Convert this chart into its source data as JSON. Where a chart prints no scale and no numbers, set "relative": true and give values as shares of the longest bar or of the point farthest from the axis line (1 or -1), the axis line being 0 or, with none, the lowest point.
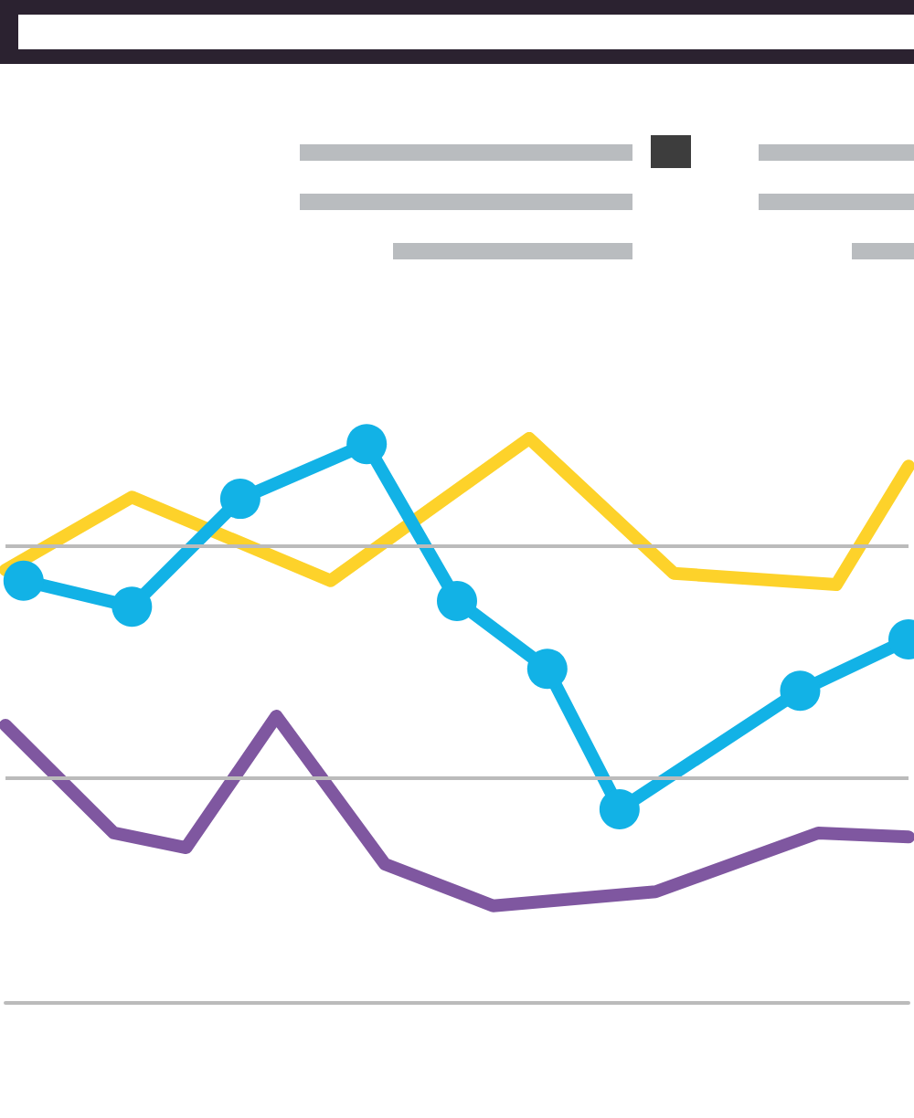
{
  "chart_data": {
    "type": "line",
    "relative": true,
    "ref_lines": [
      {
        "axis": "y",
        "value": 0.806,
        "color": "#bbbbbb"
      },
      {
        "axis": "y",
        "value": 0.401,
        "color": "#bbbbbb"
      }
    ],
    "marker": "none",
    "line_style": "solid",
    "categories": [
      null,
      null,
      null,
      null,
      null,
      null,
      null,
      null,
      null,
      null,
      null,
      null,
      null,
      null,
      null,
      null,
      null,
      null,
      null,
      null,
      null,
      null,
      null,
      null,
      null,
      null,
      null,
      null,
      null,
      null,
      null,
      null,
      null,
      null,
      null,
      null,
      null,
      null,
      null,
      null,
      null,
      null,
      null,
      null,
      null,
      null,
      null,
      null,
      null,
      null,
      null
    ],
    "series": [
      {
        "color": "#fdd22a",
        "values": [
          0.767,
          null,
          null,
          null,
          null,
          null,
          null,
          0.896,
          null,
          null,
          null,
          null,
          null,
          null,
          null,
          null,
          null,
          null,
          0.748,
          null,
          null,
          null,
          null,
          null,
          null,
          null,
          null,
          null,
          null,
          1.0,
          null,
          null,
          null,
          null,
          null,
          null,
          null,
          0.761,
          null,
          null,
          null,
          null,
          null,
          null,
          null,
          null,
          0.741,
          null,
          null,
          null,
          0.951
        ]
      },
      {
        "color": "#7f57a0",
        "values": [
          0.492,
          null,
          null,
          null,
          null,
          null,
          0.301,
          null,
          null,
          null,
          0.275,
          null,
          null,
          null,
          null,
          0.508,
          null,
          null,
          null,
          null,
          null,
          0.246,
          null,
          null,
          null,
          null,
          null,
          0.172,
          null,
          null,
          null,
          null,
          null,
          null,
          null,
          null,
          0.197,
          null,
          null,
          null,
          null,
          null,
          null,
          null,
          null,
          0.301,
          null,
          null,
          null,
          null,
          0.294
        ]
      },
      {
        "color": "#12b2e6",
        "marker": "circle",
        "values": [
          null,
          0.748,
          null,
          null,
          null,
          null,
          null,
          0.702,
          null,
          null,
          null,
          null,
          null,
          0.893,
          null,
          null,
          null,
          null,
          null,
          null,
          0.99,
          null,
          null,
          null,
          null,
          0.712,
          null,
          null,
          null,
          null,
          0.592,
          null,
          null,
          null,
          0.343,
          null,
          null,
          null,
          null,
          null,
          null,
          null,
          null,
          null,
          0.553,
          null,
          null,
          null,
          null,
          null,
          0.644
        ]
      }
    ]
  }
}
